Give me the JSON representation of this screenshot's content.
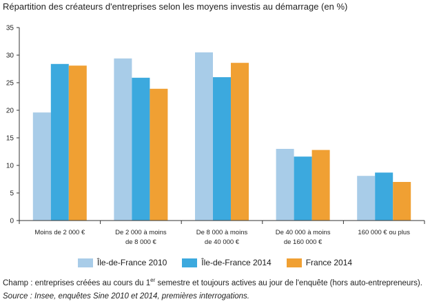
{
  "chart_data": {
    "type": "bar",
    "title": "Répartition des créateurs d'entreprises selon les moyens investis au démarrage (en %)",
    "categories": [
      [
        "Moins de 2 000 €"
      ],
      [
        "De 2 000 à moins",
        "de 8 000 €"
      ],
      [
        "De 8 000 à moins",
        "de 40 000 €"
      ],
      [
        "De 40 000 à moins",
        "de 160 000 €"
      ],
      [
        "160 000 € ou plus"
      ]
    ],
    "series": [
      {
        "name": "Île-de-France 2010",
        "color": "#a8cce8",
        "values": [
          19.6,
          29.4,
          30.5,
          13.0,
          8.1
        ]
      },
      {
        "name": "Île-de-France 2014",
        "color": "#3ca9de",
        "values": [
          28.4,
          25.9,
          26.0,
          11.6,
          8.7
        ]
      },
      {
        "name": "France 2014",
        "color": "#f0a033",
        "values": [
          28.1,
          23.9,
          28.6,
          12.8,
          7.0
        ]
      }
    ],
    "ylim": [
      0,
      35
    ],
    "yticks": [
      0,
      5,
      10,
      15,
      20,
      25,
      30,
      35
    ],
    "xlabel": "",
    "ylabel": "",
    "grid": false,
    "legend": "bottom"
  },
  "note": {
    "prefix": "Champ : entreprises créées au cours du 1",
    "sup": "er",
    "suffix": " semestre et toujours actives au jour de l'enquête (hors auto-entrepreneurs)."
  },
  "source": "Source : Insee, enquêtes Sine 2010 et 2014, premières interrogations."
}
